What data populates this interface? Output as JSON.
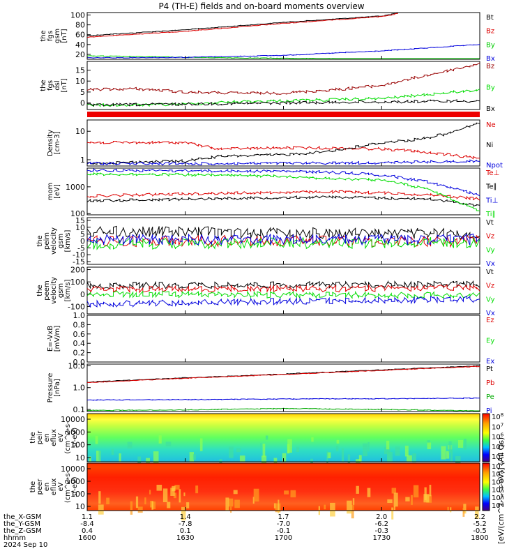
{
  "title": "P4 (TH-E) fields and on-board moments overview",
  "chart_data": [
    {
      "type": "line",
      "id": "fgs",
      "ylabel": [
        "the",
        "fgs",
        "gsm",
        "[nT]"
      ],
      "yticks": [
        "100",
        "80",
        "60",
        "40",
        "20"
      ],
      "ylim": [
        10,
        105
      ],
      "series": [
        {
          "name": "Bt",
          "color": "#000000",
          "x": [
            1600,
            1630,
            1700,
            1730,
            1735
          ],
          "y": [
            58,
            70,
            85,
            98,
            104
          ]
        },
        {
          "name": "Bz",
          "color": "#dd0000",
          "x": [
            1600,
            1630,
            1700,
            1730,
            1735
          ],
          "y": [
            55,
            67,
            83,
            97,
            103
          ]
        },
        {
          "name": "By",
          "color": "#00cc00",
          "x": [
            1600,
            1630,
            1700,
            1730,
            1800
          ],
          "y": [
            17,
            14,
            12,
            10,
            9
          ]
        },
        {
          "name": "Bx",
          "color": "#0000dd",
          "x": [
            1600,
            1630,
            1700,
            1730,
            1800
          ],
          "y": [
            13,
            14,
            18,
            27,
            40
          ]
        }
      ]
    },
    {
      "type": "line",
      "id": "fgs-dsl",
      "ylabel": [
        "the",
        "fgs",
        "dsl",
        "[nT]"
      ],
      "yticks": [
        "15",
        "10",
        "5",
        "0"
      ],
      "ylim": [
        -3,
        19
      ],
      "series": [
        {
          "name": "Bz",
          "color": "#990000",
          "x": [
            1600,
            1615,
            1630,
            1645,
            1700,
            1715,
            1730,
            1745,
            1800
          ],
          "y": [
            6,
            6.5,
            5,
            4.5,
            4.5,
            6,
            8,
            13,
            18
          ]
        },
        {
          "name": "By",
          "color": "#00dd00",
          "x": [
            1600,
            1615,
            1630,
            1645,
            1700,
            1715,
            1730,
            1745,
            1800
          ],
          "y": [
            -1,
            -1,
            -0.5,
            0.5,
            1,
            1.5,
            2,
            4,
            6
          ]
        },
        {
          "name": "Bx",
          "color": "#000000",
          "x": [
            1600,
            1630,
            1700,
            1730,
            1800
          ],
          "y": [
            -1,
            -0.5,
            0,
            0.5,
            1
          ]
        }
      ]
    },
    {
      "type": "line",
      "id": "density",
      "ylabel": [
        "Density",
        "[cm-3]"
      ],
      "yticks": [
        "10",
        "1"
      ],
      "scale": "log",
      "ylim": [
        0.6,
        25
      ],
      "series": [
        {
          "name": "Ne",
          "color": "#dd0000",
          "x": [
            1600,
            1630,
            1640,
            1650,
            1700,
            1710,
            1720,
            1730,
            1740,
            1750,
            1800
          ],
          "y": [
            4,
            4,
            2.4,
            2.5,
            2.6,
            2.6,
            2.5,
            2.4,
            2,
            1.5,
            1.1
          ]
        },
        {
          "name": "Ni",
          "color": "#000000",
          "x": [
            1600,
            1630,
            1640,
            1650,
            1700,
            1710,
            1720,
            1730,
            1740,
            1750,
            1800
          ],
          "y": [
            0.75,
            0.9,
            1.3,
            1.4,
            1.5,
            1.8,
            2.5,
            4,
            5,
            8,
            20
          ]
        },
        {
          "name": "Npot",
          "color": "#0000dd",
          "x": [
            1600,
            1630,
            1700,
            1730,
            1800
          ],
          "y": [
            0.75,
            0.72,
            0.75,
            0.78,
            0.9
          ]
        }
      ]
    },
    {
      "type": "line",
      "id": "temp",
      "ylabel": [
        "mom",
        "[eV]"
      ],
      "yticks": [
        "1000",
        "100"
      ],
      "scale": "log",
      "ylim": [
        90,
        5000
      ],
      "series": [
        {
          "name": "Te⊥",
          "color": "#dd0000",
          "x": [
            1600,
            1630,
            1700,
            1715,
            1730,
            1745,
            1800
          ],
          "y": [
            450,
            550,
            620,
            650,
            600,
            500,
            350
          ]
        },
        {
          "name": "Te∥",
          "color": "#000000",
          "x": [
            1600,
            1630,
            1700,
            1715,
            1730,
            1745,
            1800
          ],
          "y": [
            300,
            350,
            400,
            420,
            380,
            350,
            200
          ]
        },
        {
          "name": "Ti⊥",
          "color": "#0000dd",
          "x": [
            1600,
            1630,
            1700,
            1715,
            1730,
            1745,
            1800
          ],
          "y": [
            4200,
            4000,
            3800,
            3500,
            2800,
            1500,
            500
          ]
        },
        {
          "name": "Ti∥",
          "color": "#00dd00",
          "x": [
            1600,
            1630,
            1700,
            1715,
            1730,
            1745,
            1800
          ],
          "y": [
            3000,
            2800,
            2500,
            2000,
            1800,
            800,
            120
          ]
        }
      ]
    },
    {
      "type": "line",
      "id": "peim",
      "ylabel": [
        "the",
        "peim",
        "velocity",
        "gsm",
        "[km/s]"
      ],
      "yticks": [
        "15",
        "10",
        "5",
        "0",
        "-5",
        "-10",
        "-15"
      ],
      "ylim": [
        -17,
        17
      ],
      "series": [
        {
          "name": "Vt",
          "color": "#000000",
          "x": [
            1600,
            1800
          ],
          "y": [
            7,
            5
          ]
        },
        {
          "name": "Vz",
          "color": "#dd0000",
          "x": [
            1600,
            1800
          ],
          "y": [
            0,
            0
          ]
        },
        {
          "name": "Vy",
          "color": "#00dd00",
          "x": [
            1600,
            1800
          ],
          "y": [
            -2,
            -1
          ]
        },
        {
          "name": "Vx",
          "color": "#0000dd",
          "x": [
            1600,
            1800
          ],
          "y": [
            1,
            1
          ]
        }
      ]
    },
    {
      "type": "line",
      "id": "peem",
      "ylabel": [
        "the",
        "peem",
        "velocity",
        "gsm",
        "[km/s]"
      ],
      "yticks": [
        "200",
        "100",
        "0",
        "-100"
      ],
      "ylim": [
        -160,
        220
      ],
      "series": [
        {
          "name": "Vt",
          "color": "#000000",
          "x": [
            1600,
            1800
          ],
          "y": [
            70,
            80
          ]
        },
        {
          "name": "Vz",
          "color": "#dd0000",
          "x": [
            1600,
            1800
          ],
          "y": [
            40,
            50
          ]
        },
        {
          "name": "Vy",
          "color": "#00dd00",
          "x": [
            1600,
            1800
          ],
          "y": [
            0,
            -10
          ]
        },
        {
          "name": "Vx",
          "color": "#0000dd",
          "x": [
            1600,
            1800
          ],
          "y": [
            -80,
            -40
          ]
        }
      ]
    },
    {
      "type": "line",
      "id": "efield",
      "ylabel": [
        "E=-VxB",
        "[mV/m]"
      ],
      "yticks": [
        "1.0",
        "0.8",
        "0.6",
        "0.4",
        "0.2",
        "0.0"
      ],
      "ylim": [
        0,
        1
      ],
      "series": [
        {
          "name": "Ez",
          "color": "#dd0000",
          "x": [],
          "y": []
        },
        {
          "name": "Ey",
          "color": "#00dd00",
          "x": [],
          "y": []
        },
        {
          "name": "Ex",
          "color": "#0000dd",
          "x": [],
          "y": []
        }
      ]
    },
    {
      "type": "line",
      "id": "pressure",
      "ylabel": [
        "Pressure",
        "[nPa]"
      ],
      "yticks": [
        "10.0",
        "1.0",
        "0.1"
      ],
      "scale": "log",
      "ylim": [
        0.08,
        12
      ],
      "series": [
        {
          "name": "Pt",
          "color": "#000000",
          "x": [
            1600,
            1630,
            1700,
            1730,
            1800
          ],
          "y": [
            1.8,
            2.8,
            4.2,
            6.5,
            10
          ]
        },
        {
          "name": "Pb",
          "color": "#dd0000",
          "x": [
            1600,
            1630,
            1700,
            1730,
            1800
          ],
          "y": [
            1.7,
            2.7,
            4.0,
            6.2,
            9.5
          ]
        },
        {
          "name": "Pe",
          "color": "#00aa00",
          "x": [
            1600,
            1630,
            1700,
            1730,
            1800
          ],
          "y": [
            0.09,
            0.095,
            0.11,
            0.1,
            0.085
          ]
        },
        {
          "name": "Pi",
          "color": "#0000dd",
          "x": [
            1600,
            1630,
            1700,
            1730,
            1800
          ],
          "y": [
            0.27,
            0.28,
            0.3,
            0.31,
            0.33
          ]
        }
      ]
    },
    {
      "type": "heatmap",
      "id": "peir",
      "ylabel": [
        "the",
        "peir",
        "en",
        "eflux",
        "eV",
        "(cm^2-s-",
        "sr-eV)"
      ],
      "yticks": [
        "10000",
        "1000",
        "100",
        "10"
      ],
      "colorbar": {
        "ticks": [
          "10^8",
          "10^7",
          "10^6",
          "10^5",
          "10^4"
        ]
      }
    },
    {
      "type": "heatmap",
      "id": "peer",
      "ylabel": [
        "the",
        "peer",
        "en",
        "eflux",
        "eV",
        "(cm^2-s-",
        "sr-eV)"
      ],
      "yticks": [
        "10000",
        "1000",
        "100",
        "10"
      ],
      "colorbar": {
        "ticks": [
          "10^7",
          "10^6",
          "10^5",
          "10^4",
          "10^3",
          "10^2"
        ]
      }
    }
  ],
  "colorbar_title": "[eV/(cm^2-s-sr-eV)] (All Qs)",
  "footer": {
    "rows": [
      {
        "label": "the_X-GSM",
        "values": [
          "1.1",
          "1.4",
          "1.7",
          "2.0",
          "2.2"
        ]
      },
      {
        "label": "the_Y-GSM",
        "values": [
          "-8.4",
          "-7.8",
          "-7.0",
          "-6.2",
          "-5.2"
        ]
      },
      {
        "label": "the_Z-GSM",
        "values": [
          "0.4",
          "0.1",
          "-0.1",
          "-0.3",
          "-0.5"
        ]
      },
      {
        "label": "hhmm",
        "values": [
          "1600",
          "1630",
          "1700",
          "1730",
          "1800"
        ]
      }
    ],
    "date": "2024 Sep 10"
  },
  "colors": {
    "red_bar": "#ee0000"
  }
}
